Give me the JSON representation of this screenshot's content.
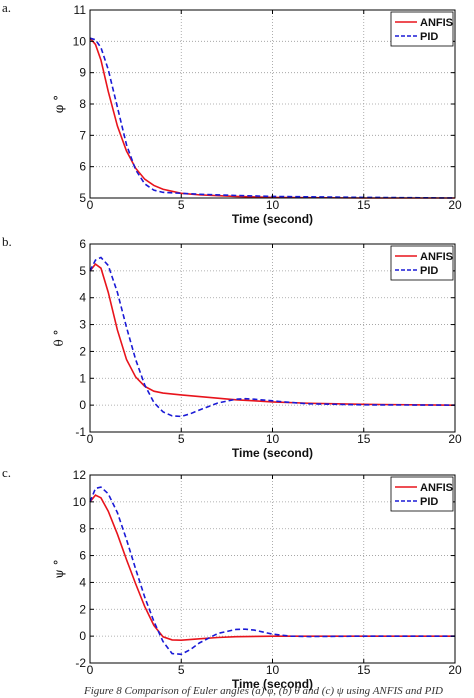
{
  "caption": "Figure 8 Comparison of Euler angles (a) φ, (b) θ and (c) ψ using ANFIS and PID",
  "colors": {
    "anfis": "#e8141c",
    "pid": "#1a1ad6",
    "grid": "#9a9a9a",
    "axis": "#000000"
  },
  "chart_data": [
    {
      "panel": "a.",
      "type": "line",
      "xlabel": "Time (second)",
      "ylabel": "φ °",
      "xlim": [
        0,
        20
      ],
      "ylim": [
        5,
        11
      ],
      "xticks": [
        0,
        5,
        10,
        15,
        20
      ],
      "yticks": [
        5,
        6,
        7,
        8,
        9,
        10,
        11
      ],
      "grid": true,
      "legend": "top-right",
      "series": [
        {
          "name": "ANFIS",
          "style": "solid",
          "x": [
            0,
            0.3,
            0.6,
            1,
            1.5,
            2,
            2.5,
            3,
            3.5,
            4,
            5,
            6,
            8,
            10,
            15,
            20
          ],
          "y": [
            10.1,
            9.9,
            9.4,
            8.4,
            7.3,
            6.5,
            5.95,
            5.6,
            5.4,
            5.28,
            5.15,
            5.1,
            5.05,
            5.02,
            5.0,
            5.0
          ]
        },
        {
          "name": "PID",
          "style": "dashed",
          "x": [
            0,
            0.3,
            0.6,
            1,
            1.5,
            2,
            2.5,
            3,
            3.5,
            4,
            5,
            6,
            8,
            10,
            15,
            20
          ],
          "y": [
            10.1,
            10.05,
            9.8,
            9.1,
            7.9,
            6.7,
            5.9,
            5.45,
            5.25,
            5.18,
            5.15,
            5.12,
            5.08,
            5.05,
            5.02,
            5.0
          ]
        }
      ]
    },
    {
      "panel": "b.",
      "type": "line",
      "xlabel": "Time (second)",
      "ylabel": "θ °",
      "xlim": [
        0,
        20
      ],
      "ylim": [
        -1,
        6
      ],
      "xticks": [
        0,
        5,
        10,
        15,
        20
      ],
      "yticks": [
        -1,
        0,
        1,
        2,
        3,
        4,
        5,
        6
      ],
      "grid": true,
      "legend": "top-right",
      "series": [
        {
          "name": "ANFIS",
          "style": "solid",
          "x": [
            0,
            0.3,
            0.6,
            1,
            1.5,
            2,
            2.5,
            3,
            3.5,
            4,
            5,
            6,
            7,
            8,
            9,
            10,
            12,
            15,
            20
          ],
          "y": [
            5.0,
            5.25,
            5.1,
            4.2,
            2.8,
            1.7,
            1.05,
            0.7,
            0.52,
            0.45,
            0.38,
            0.32,
            0.26,
            0.2,
            0.16,
            0.12,
            0.07,
            0.03,
            0.0
          ]
        },
        {
          "name": "PID",
          "style": "dashed",
          "x": [
            0,
            0.3,
            0.6,
            1,
            1.5,
            2,
            2.5,
            3,
            3.5,
            4,
            4.5,
            5,
            5.5,
            6,
            7,
            8,
            8.5,
            9,
            10,
            11,
            12,
            15,
            20
          ],
          "y": [
            5.0,
            5.4,
            5.5,
            5.2,
            4.2,
            2.9,
            1.7,
            0.75,
            0.1,
            -0.25,
            -0.4,
            -0.42,
            -0.32,
            -0.18,
            0.08,
            0.22,
            0.24,
            0.22,
            0.16,
            0.1,
            0.05,
            0.01,
            0.0
          ]
        }
      ]
    },
    {
      "panel": "c.",
      "type": "line",
      "xlabel": "Time (second)",
      "ylabel": "ψ °",
      "xlim": [
        0,
        20
      ],
      "ylim": [
        -2,
        12
      ],
      "xticks": [
        0,
        5,
        10,
        15,
        20
      ],
      "yticks": [
        -2,
        0,
        2,
        4,
        6,
        8,
        10,
        12
      ],
      "grid": true,
      "legend": "top-right",
      "series": [
        {
          "name": "ANFIS",
          "style": "solid",
          "x": [
            0,
            0.3,
            0.6,
            1,
            1.5,
            2,
            2.5,
            3,
            3.5,
            4,
            4.5,
            5,
            6,
            7,
            8,
            10,
            15,
            20
          ],
          "y": [
            10.0,
            10.5,
            10.3,
            9.3,
            7.6,
            5.7,
            3.9,
            2.2,
            0.8,
            -0.05,
            -0.28,
            -0.3,
            -0.2,
            -0.1,
            -0.04,
            0.0,
            0.0,
            0.0
          ]
        },
        {
          "name": "PID",
          "style": "dashed",
          "x": [
            0,
            0.3,
            0.6,
            1,
            1.5,
            2,
            2.5,
            3,
            3.5,
            4,
            4.5,
            5,
            5.5,
            6,
            7,
            8,
            8.5,
            9,
            10,
            11,
            12,
            15,
            20
          ],
          "y": [
            10.0,
            11.0,
            11.1,
            10.6,
            9.2,
            7.2,
            5.0,
            2.9,
            1.1,
            -0.4,
            -1.3,
            -1.35,
            -1.0,
            -0.5,
            0.2,
            0.5,
            0.52,
            0.45,
            0.15,
            0.0,
            -0.03,
            0.0,
            0.0
          ]
        }
      ]
    }
  ]
}
